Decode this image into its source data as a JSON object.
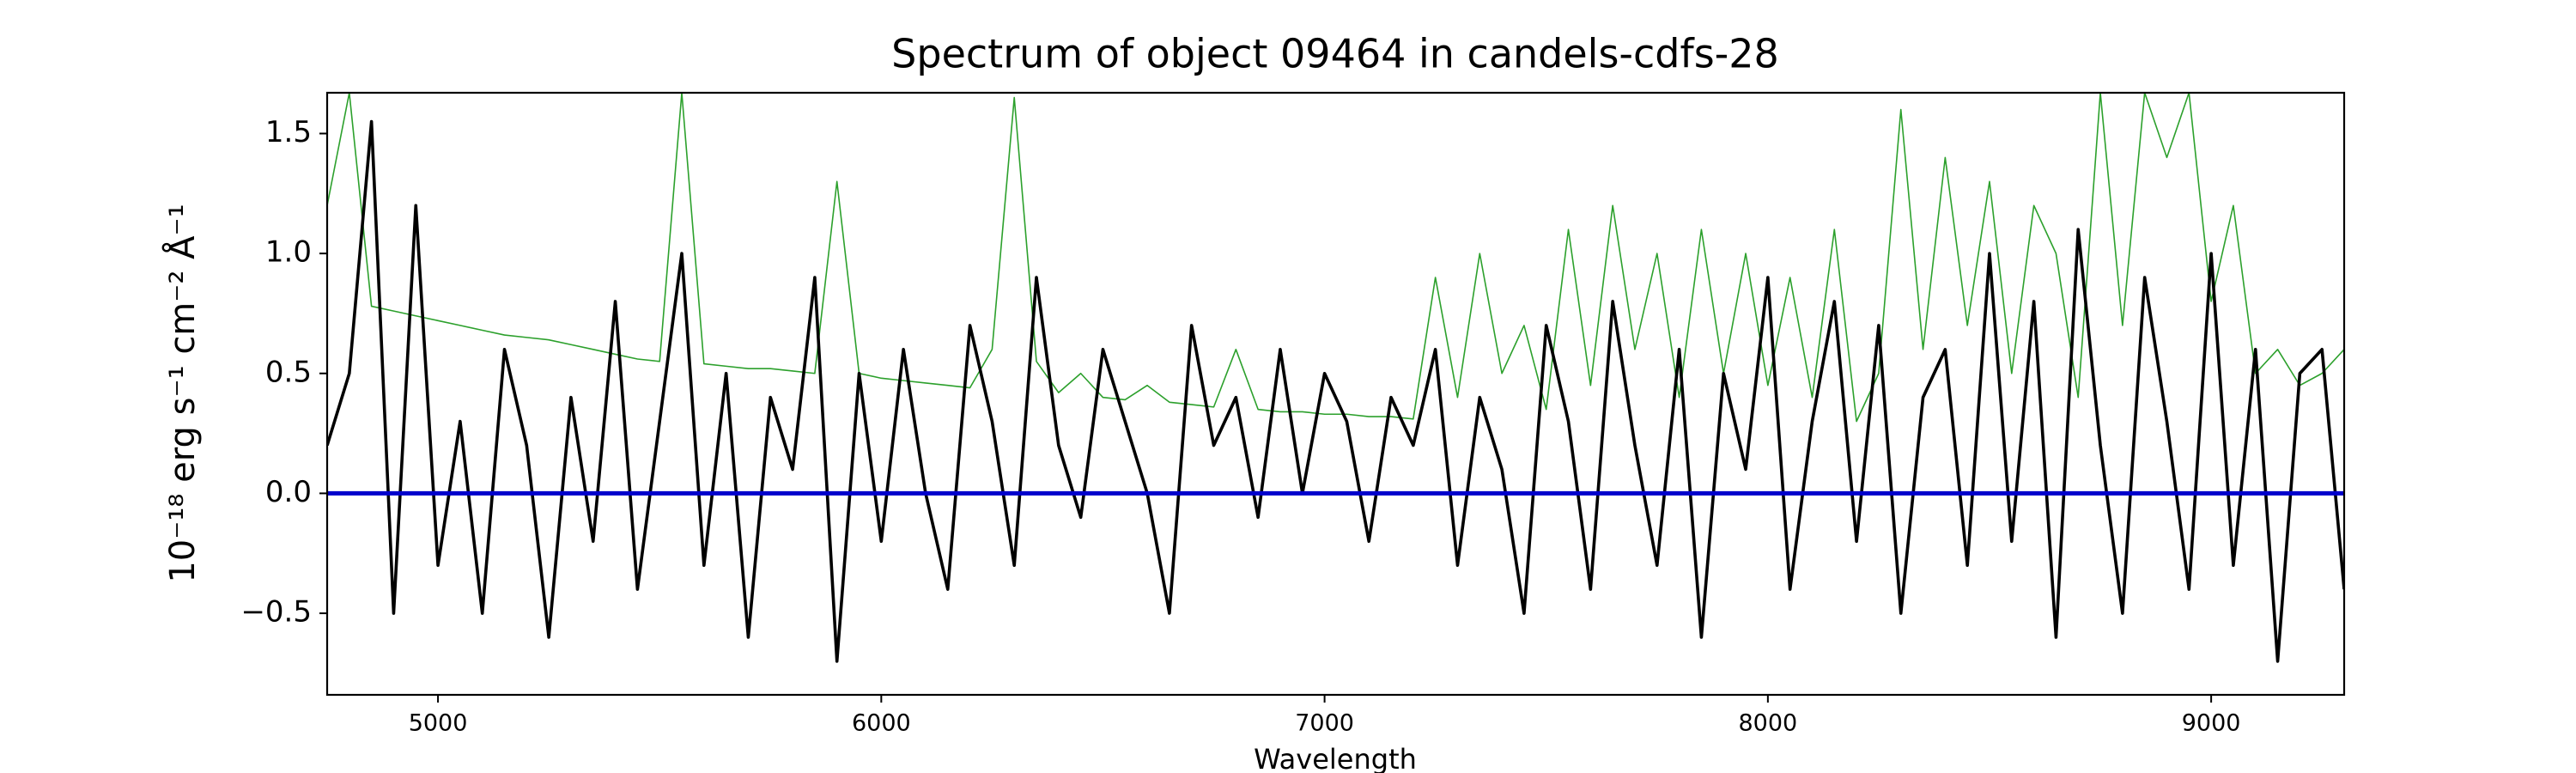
{
  "chart_data": {
    "type": "line",
    "title": "Spectrum of object 09464 in candels-cdfs-28",
    "xlabel": "Wavelength",
    "ylabel": "10⁻¹⁸ erg s⁻¹ cm⁻² Å⁻¹",
    "xlim": [
      4750,
      9300
    ],
    "ylim": [
      -0.84,
      1.67
    ],
    "xticks": [
      5000,
      6000,
      7000,
      8000,
      9000
    ],
    "yticks": [
      {
        "value": -0.5,
        "label": "−0.5"
      },
      {
        "value": 0,
        "label": "0.0"
      },
      {
        "value": 0.5,
        "label": "0.5"
      },
      {
        "value": 1,
        "label": "1.0"
      },
      {
        "value": 1.5,
        "label": "1.5"
      }
    ],
    "x": [
      4750,
      4800,
      4850,
      4900,
      4950,
      5000,
      5050,
      5100,
      5150,
      5200,
      5250,
      5300,
      5350,
      5400,
      5450,
      5500,
      5550,
      5600,
      5650,
      5700,
      5750,
      5800,
      5850,
      5900,
      5950,
      6000,
      6050,
      6100,
      6150,
      6200,
      6250,
      6300,
      6350,
      6400,
      6450,
      6500,
      6550,
      6600,
      6650,
      6700,
      6750,
      6800,
      6850,
      6900,
      6950,
      7000,
      7050,
      7100,
      7150,
      7200,
      7250,
      7300,
      7350,
      7400,
      7450,
      7500,
      7550,
      7600,
      7650,
      7700,
      7750,
      7800,
      7850,
      7900,
      7950,
      8000,
      8050,
      8100,
      8150,
      8200,
      8250,
      8300,
      8350,
      8400,
      8450,
      8500,
      8550,
      8600,
      8650,
      8700,
      8750,
      8800,
      8850,
      8900,
      8950,
      9000,
      9050,
      9100,
      9150,
      9200,
      9250,
      9300
    ],
    "series": [
      {
        "color": "#2ca02c",
        "values": [
          1.2,
          1.67,
          0.78,
          0.76,
          0.74,
          0.72,
          0.7,
          0.68,
          0.66,
          0.65,
          0.64,
          0.62,
          0.6,
          0.58,
          0.56,
          0.55,
          1.67,
          0.54,
          0.53,
          0.52,
          0.52,
          0.51,
          0.5,
          1.3,
          0.5,
          0.48,
          0.47,
          0.46,
          0.45,
          0.44,
          0.6,
          1.65,
          0.55,
          0.42,
          0.5,
          0.4,
          0.39,
          0.45,
          0.38,
          0.37,
          0.36,
          0.6,
          0.35,
          0.34,
          0.34,
          0.33,
          0.33,
          0.32,
          0.32,
          0.31,
          0.9,
          0.4,
          1.0,
          0.5,
          0.7,
          0.35,
          1.1,
          0.45,
          1.2,
          0.6,
          1.0,
          0.4,
          1.1,
          0.5,
          1.0,
          0.45,
          0.9,
          0.4,
          1.1,
          0.3,
          0.5,
          1.6,
          0.6,
          1.4,
          0.7,
          1.3,
          0.5,
          1.2,
          1.0,
          0.4,
          1.67,
          0.7,
          1.67,
          1.4,
          1.67,
          0.8,
          1.2,
          0.5,
          0.6,
          0.45,
          0.5,
          0.6
        ]
      },
      {
        "color": "#000000",
        "values": [
          0.2,
          0.5,
          1.55,
          -0.5,
          1.2,
          -0.3,
          0.3,
          -0.5,
          0.6,
          0.2,
          -0.6,
          0.4,
          -0.2,
          0.8,
          -0.4,
          0.3,
          1.0,
          -0.3,
          0.5,
          -0.6,
          0.4,
          0.1,
          0.9,
          -0.7,
          0.5,
          -0.2,
          0.6,
          0.0,
          -0.4,
          0.7,
          0.3,
          -0.3,
          0.9,
          0.2,
          -0.1,
          0.6,
          0.3,
          0.0,
          -0.5,
          0.7,
          0.2,
          0.4,
          -0.1,
          0.6,
          0.0,
          0.5,
          0.3,
          -0.2,
          0.4,
          0.2,
          0.6,
          -0.3,
          0.4,
          0.1,
          -0.5,
          0.7,
          0.3,
          -0.4,
          0.8,
          0.2,
          -0.3,
          0.6,
          -0.6,
          0.5,
          0.1,
          0.9,
          -0.4,
          0.3,
          0.8,
          -0.2,
          0.7,
          -0.5,
          0.4,
          0.6,
          -0.3,
          1.0,
          -0.2,
          0.8,
          -0.6,
          1.1,
          0.2,
          -0.5,
          0.9,
          0.3,
          -0.4,
          1.0,
          -0.3,
          0.6,
          -0.7,
          0.5,
          0.6,
          -0.4
        ]
      },
      {
        "color": "#0000cc",
        "values": [
          0,
          0,
          0,
          0,
          0,
          0,
          0,
          0,
          0,
          0,
          0,
          0,
          0,
          0,
          0,
          0,
          0,
          0,
          0,
          0,
          0,
          0,
          0,
          0,
          0,
          0,
          0,
          0,
          0,
          0,
          0,
          0,
          0,
          0,
          0,
          0,
          0,
          0,
          0,
          0,
          0,
          0,
          0,
          0,
          0,
          0,
          0,
          0,
          0,
          0,
          0,
          0,
          0,
          0,
          0,
          0,
          0,
          0,
          0,
          0,
          0,
          0,
          0,
          0,
          0,
          0,
          0,
          0,
          0,
          0,
          0,
          0,
          0,
          0,
          0,
          0,
          0,
          0,
          0,
          0,
          0,
          0,
          0,
          0,
          0,
          0,
          0,
          0,
          0,
          0,
          0,
          0
        ]
      }
    ]
  }
}
